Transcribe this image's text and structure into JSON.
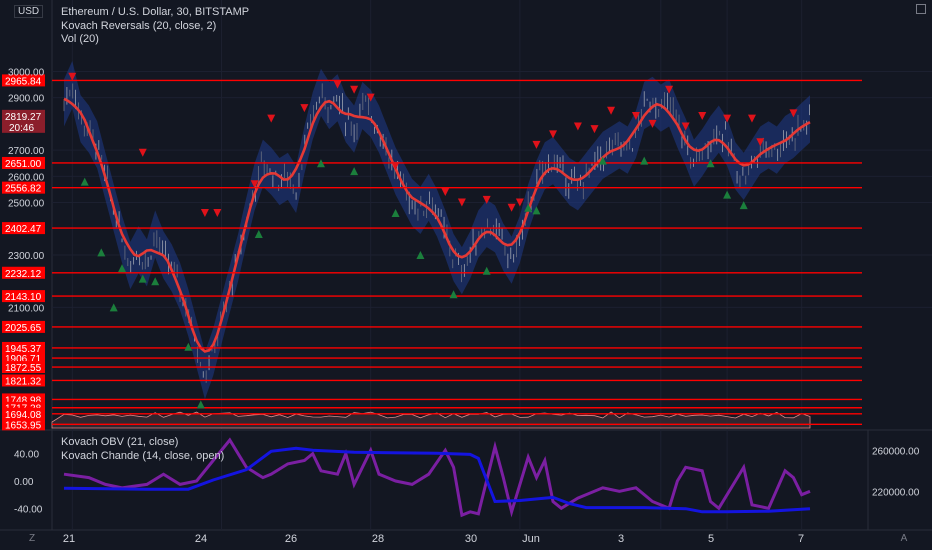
{
  "symbol_title": "Ethereum / U.S. Dollar, 30, BITSTAMP",
  "indicator_1": "Kovach Reversals (20, close, 2)",
  "indicator_2": "Vol (20)",
  "indicator_3": "Kovach OBV (21, close)",
  "indicator_4": "Kovach Chande (14, close, open)",
  "currency_label": "USD",
  "current_price": "2819.27",
  "countdown": "20:46",
  "bottom_left_btn": "Z",
  "bottom_right_btn": "A",
  "colors": {
    "background": "#131722",
    "level_line": "#ff0000",
    "band_fill": "#1f3a8a",
    "ma_line": "#e53935",
    "obv_line": "#1414e0",
    "chande_line": "#7b1fa2",
    "up_marker": "#1b7f3c",
    "down_marker": "#e0121a",
    "current_price_tag": "#8b1e2b"
  },
  "chart_data": {
    "type": "candlestick",
    "price_axis": {
      "ticks": [
        3000.0,
        2900.0,
        2700.0,
        2600.0,
        2500.0,
        2300.0,
        2100.0
      ],
      "range": [
        1640,
        3120
      ]
    },
    "horizontal_levels": [
      2965.84,
      2651.0,
      2556.82,
      2402.47,
      2232.12,
      2143.1,
      2025.65,
      1945.37,
      1906.71,
      1872.55,
      1821.32,
      1748.98,
      1717.28,
      1694.08,
      1653.95
    ],
    "x_axis_labels": [
      "21",
      "24",
      "26",
      "28",
      "30",
      "Jun",
      "3",
      "5",
      "7"
    ],
    "price_path": [
      [
        0,
        2880
      ],
      [
        2,
        2950
      ],
      [
        4,
        2820
      ],
      [
        6,
        2780
      ],
      [
        8,
        2720
      ],
      [
        10,
        2600
      ],
      [
        12,
        2480
      ],
      [
        14,
        2360
      ],
      [
        16,
        2260
      ],
      [
        18,
        2320
      ],
      [
        20,
        2270
      ],
      [
        22,
        2380
      ],
      [
        24,
        2300
      ],
      [
        26,
        2250
      ],
      [
        28,
        2180
      ],
      [
        30,
        2080
      ],
      [
        32,
        1960
      ],
      [
        34,
        1840
      ],
      [
        36,
        1930
      ],
      [
        38,
        2050
      ],
      [
        40,
        2170
      ],
      [
        42,
        2290
      ],
      [
        44,
        2430
      ],
      [
        46,
        2560
      ],
      [
        48,
        2650
      ],
      [
        50,
        2620
      ],
      [
        52,
        2580
      ],
      [
        54,
        2600
      ],
      [
        56,
        2550
      ],
      [
        58,
        2700
      ],
      [
        60,
        2830
      ],
      [
        62,
        2920
      ],
      [
        64,
        2870
      ],
      [
        66,
        2900
      ],
      [
        68,
        2820
      ],
      [
        70,
        2780
      ],
      [
        72,
        2870
      ],
      [
        74,
        2840
      ],
      [
        76,
        2780
      ],
      [
        78,
        2700
      ],
      [
        80,
        2620
      ],
      [
        82,
        2560
      ],
      [
        84,
        2500
      ],
      [
        86,
        2470
      ],
      [
        88,
        2520
      ],
      [
        90,
        2460
      ],
      [
        92,
        2380
      ],
      [
        94,
        2290
      ],
      [
        96,
        2240
      ],
      [
        98,
        2300
      ],
      [
        100,
        2380
      ],
      [
        102,
        2420
      ],
      [
        104,
        2400
      ],
      [
        106,
        2330
      ],
      [
        108,
        2280
      ],
      [
        110,
        2360
      ],
      [
        112,
        2480
      ],
      [
        114,
        2570
      ],
      [
        116,
        2640
      ],
      [
        118,
        2660
      ],
      [
        120,
        2620
      ],
      [
        122,
        2580
      ],
      [
        124,
        2560
      ],
      [
        126,
        2600
      ],
      [
        128,
        2640
      ],
      [
        130,
        2680
      ],
      [
        132,
        2700
      ],
      [
        134,
        2720
      ],
      [
        136,
        2700
      ],
      [
        138,
        2760
      ],
      [
        140,
        2870
      ],
      [
        142,
        2890
      ],
      [
        144,
        2860
      ],
      [
        146,
        2880
      ],
      [
        148,
        2800
      ],
      [
        150,
        2730
      ],
      [
        152,
        2650
      ],
      [
        154,
        2690
      ],
      [
        156,
        2740
      ],
      [
        158,
        2780
      ],
      [
        160,
        2730
      ],
      [
        162,
        2640
      ],
      [
        164,
        2600
      ],
      [
        166,
        2650
      ],
      [
        168,
        2700
      ],
      [
        170,
        2720
      ],
      [
        172,
        2700
      ],
      [
        174,
        2740
      ],
      [
        176,
        2760
      ],
      [
        178,
        2790
      ],
      [
        180,
        2819
      ]
    ],
    "obv_axis_ticks": [
      "260000.00",
      "220000.00"
    ],
    "chande_axis_ticks": [
      "40.00",
      "0.00",
      "-40.00"
    ],
    "obv_path": [
      [
        0,
        223000
      ],
      [
        20,
        222000
      ],
      [
        30,
        222000
      ],
      [
        36,
        231000
      ],
      [
        44,
        241000
      ],
      [
        50,
        259000
      ],
      [
        56,
        262000
      ],
      [
        60,
        260000
      ],
      [
        70,
        258000
      ],
      [
        90,
        257000
      ],
      [
        98,
        256000
      ],
      [
        100,
        252000
      ],
      [
        104,
        210000
      ],
      [
        110,
        211000
      ],
      [
        118,
        214000
      ],
      [
        122,
        208000
      ],
      [
        126,
        204000
      ],
      [
        140,
        204000
      ],
      [
        150,
        203000
      ],
      [
        154,
        200000
      ],
      [
        160,
        200000
      ],
      [
        170,
        200500
      ],
      [
        180,
        203000
      ]
    ],
    "chande_path": [
      [
        0,
        10
      ],
      [
        6,
        5
      ],
      [
        10,
        -5
      ],
      [
        14,
        -10
      ],
      [
        20,
        -5
      ],
      [
        24,
        10
      ],
      [
        28,
        -5
      ],
      [
        32,
        0
      ],
      [
        36,
        30
      ],
      [
        40,
        60
      ],
      [
        44,
        20
      ],
      [
        48,
        5
      ],
      [
        50,
        10
      ],
      [
        54,
        25
      ],
      [
        58,
        30
      ],
      [
        60,
        40
      ],
      [
        62,
        15
      ],
      [
        66,
        10
      ],
      [
        68,
        40
      ],
      [
        70,
        -5
      ],
      [
        74,
        45
      ],
      [
        76,
        10
      ],
      [
        80,
        0
      ],
      [
        84,
        -5
      ],
      [
        88,
        10
      ],
      [
        92,
        45
      ],
      [
        94,
        20
      ],
      [
        96,
        -50
      ],
      [
        98,
        -45
      ],
      [
        100,
        -48
      ],
      [
        104,
        50
      ],
      [
        106,
        5
      ],
      [
        108,
        -45
      ],
      [
        112,
        35
      ],
      [
        114,
        5
      ],
      [
        116,
        30
      ],
      [
        118,
        -30
      ],
      [
        120,
        -40
      ],
      [
        124,
        -25
      ],
      [
        130,
        -10
      ],
      [
        134,
        -15
      ],
      [
        138,
        -10
      ],
      [
        142,
        -30
      ],
      [
        146,
        -40
      ],
      [
        148,
        0
      ],
      [
        150,
        20
      ],
      [
        154,
        15
      ],
      [
        156,
        -30
      ],
      [
        158,
        -40
      ],
      [
        162,
        0
      ],
      [
        164,
        20
      ],
      [
        166,
        -35
      ],
      [
        170,
        -40
      ],
      [
        174,
        15
      ],
      [
        176,
        5
      ],
      [
        178,
        -20
      ],
      [
        180,
        -15
      ]
    ],
    "reversal_up": [
      [
        5,
        2580
      ],
      [
        9,
        2310
      ],
      [
        12,
        2100
      ],
      [
        14,
        2250
      ],
      [
        19,
        2210
      ],
      [
        22,
        2200
      ],
      [
        30,
        1950
      ],
      [
        33,
        1730
      ],
      [
        47,
        2380
      ],
      [
        62,
        2650
      ],
      [
        70,
        2620
      ],
      [
        80,
        2460
      ],
      [
        86,
        2300
      ],
      [
        94,
        2150
      ],
      [
        102,
        2240
      ],
      [
        112,
        2480
      ],
      [
        114,
        2470
      ],
      [
        130,
        2660
      ],
      [
        140,
        2660
      ],
      [
        156,
        2650
      ],
      [
        160,
        2530
      ],
      [
        164,
        2490
      ]
    ],
    "reversal_down": [
      [
        2,
        2980
      ],
      [
        19,
        2690
      ],
      [
        34,
        2460
      ],
      [
        37,
        2460
      ],
      [
        46,
        2570
      ],
      [
        50,
        2820
      ],
      [
        58,
        2860
      ],
      [
        66,
        2950
      ],
      [
        70,
        2930
      ],
      [
        74,
        2900
      ],
      [
        80,
        2640
      ],
      [
        92,
        2540
      ],
      [
        96,
        2500
      ],
      [
        102,
        2510
      ],
      [
        108,
        2480
      ],
      [
        110,
        2500
      ],
      [
        114,
        2720
      ],
      [
        118,
        2760
      ],
      [
        124,
        2790
      ],
      [
        128,
        2780
      ],
      [
        132,
        2850
      ],
      [
        138,
        2830
      ],
      [
        142,
        2800
      ],
      [
        146,
        2930
      ],
      [
        150,
        2790
      ],
      [
        154,
        2830
      ],
      [
        160,
        2820
      ],
      [
        166,
        2820
      ],
      [
        168,
        2730
      ],
      [
        176,
        2840
      ]
    ]
  }
}
